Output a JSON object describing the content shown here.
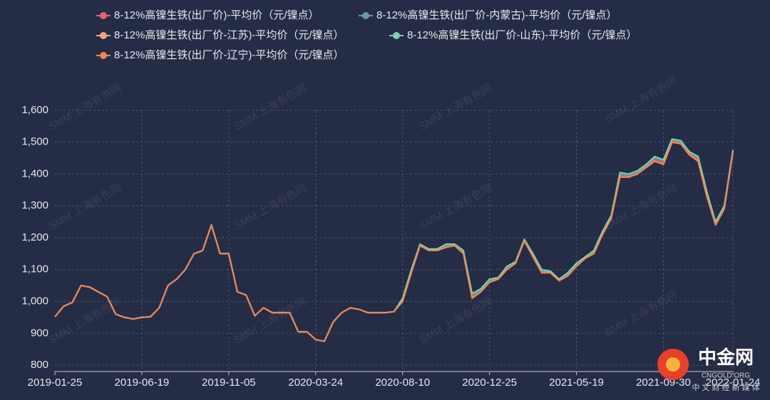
{
  "chart_data": {
    "type": "line",
    "watermark": "SMM 上海有色网",
    "logo": {
      "name": "中金网",
      "site": "CNGOLD.ORG",
      "slogan": "中 文 财 经 新 媒 体"
    },
    "categories": [
      "2019-01-25",
      null,
      null,
      null,
      null,
      null,
      null,
      null,
      null,
      null,
      "2019-06-19",
      null,
      null,
      null,
      null,
      null,
      null,
      null,
      null,
      null,
      "2019-11-05",
      null,
      null,
      null,
      null,
      null,
      null,
      null,
      null,
      null,
      "2020-03-24",
      null,
      null,
      null,
      null,
      null,
      null,
      null,
      null,
      null,
      "2020-08-10",
      null,
      null,
      null,
      null,
      null,
      null,
      null,
      null,
      null,
      "2020-12-25",
      null,
      null,
      null,
      null,
      null,
      null,
      null,
      null,
      null,
      "2021-05-19",
      null,
      null,
      null,
      null,
      null,
      null,
      null,
      null,
      null,
      "2021-09-30",
      null,
      null,
      null,
      null,
      null,
      null,
      null,
      "2022-01-24"
    ],
    "ylim": [
      780,
      1600
    ],
    "yticks": [
      800,
      900,
      {
        "value": 1000,
        "label": "1,000"
      },
      {
        "value": 1100,
        "label": "1,100"
      },
      {
        "value": 1200,
        "label": "1,200"
      },
      {
        "value": 1300,
        "label": "1,300"
      },
      {
        "value": 1400,
        "label": "1,400"
      },
      {
        "value": 1500,
        "label": "1,500"
      },
      {
        "value": 1600,
        "label": "1,600"
      }
    ],
    "grid": true,
    "series": [
      {
        "name": "8-12%高镍生铁(出厂价)-平均价（元/镍点）",
        "color": "#e0676b",
        "values": [
          952,
          985,
          997,
          1050,
          1045,
          1030,
          1015,
          960,
          950,
          945,
          950,
          952,
          980,
          1050,
          1070,
          1100,
          1150,
          1160,
          1240,
          1150,
          1150,
          1030,
          1020,
          955,
          980,
          965,
          965,
          965,
          905,
          905,
          880,
          875,
          935,
          965,
          980,
          975,
          965,
          965,
          965,
          968,
          1005,
          1095,
          1178,
          1160,
          1162,
          1172,
          1178,
          1152,
          1015,
          1032,
          1062,
          1072,
          1102,
          1122,
          1192,
          1142,
          1092,
          1092,
          1068,
          1082,
          1112,
          1137,
          1152,
          1212,
          1262,
          1395,
          1392,
          1402,
          1422,
          1445,
          1435,
          1505,
          1498,
          1465,
          1445,
          1335,
          1242,
          1292,
          1472
        ]
      },
      {
        "name": "8-12%高镍生铁(出厂价-内蒙古)-平均价（元/镍点）",
        "color": "#6c9a9c",
        "values": [
          952,
          985,
          997,
          1050,
          1045,
          1030,
          1015,
          960,
          950,
          945,
          950,
          952,
          980,
          1050,
          1070,
          1100,
          1150,
          1160,
          1240,
          1150,
          1150,
          1030,
          1020,
          955,
          980,
          965,
          965,
          965,
          905,
          905,
          880,
          875,
          935,
          965,
          980,
          975,
          965,
          965,
          965,
          968,
          1005,
          1095,
          1180,
          1160,
          1165,
          1175,
          1180,
          1155,
          1020,
          1035,
          1065,
          1075,
          1105,
          1125,
          1195,
          1145,
          1095,
          1095,
          1070,
          1085,
          1115,
          1140,
          1155,
          1215,
          1265,
          1400,
          1395,
          1405,
          1425,
          1450,
          1440,
          1510,
          1500,
          1470,
          1450,
          1340,
          1245,
          1295,
          1475
        ]
      },
      {
        "name": "8-12%高镍生铁(出厂价-江苏)-平均价（元/镍点）",
        "color": "#f2a384",
        "values": [
          952,
          985,
          997,
          1050,
          1045,
          1030,
          1015,
          960,
          950,
          945,
          950,
          952,
          980,
          1050,
          1070,
          1100,
          1150,
          1160,
          1240,
          1150,
          1150,
          1030,
          1020,
          955,
          980,
          965,
          965,
          965,
          905,
          905,
          880,
          875,
          935,
          965,
          980,
          975,
          965,
          965,
          965,
          968,
          1000,
          1090,
          1175,
          1160,
          1160,
          1170,
          1175,
          1150,
          1010,
          1030,
          1060,
          1070,
          1100,
          1120,
          1190,
          1140,
          1090,
          1090,
          1065,
          1080,
          1110,
          1135,
          1150,
          1210,
          1260,
          1390,
          1390,
          1400,
          1420,
          1440,
          1430,
          1500,
          1495,
          1460,
          1440,
          1330,
          1240,
          1290,
          1470
        ]
      },
      {
        "name": "8-12%高镍生铁(出厂价-山东)-平均价（元/镍点）",
        "color": "#7fd0b0",
        "values": [
          952,
          985,
          997,
          1050,
          1045,
          1030,
          1015,
          960,
          950,
          945,
          950,
          952,
          980,
          1050,
          1070,
          1100,
          1150,
          1160,
          1240,
          1150,
          1150,
          1030,
          1020,
          955,
          980,
          965,
          965,
          965,
          905,
          905,
          880,
          875,
          935,
          965,
          980,
          975,
          965,
          965,
          965,
          968,
          1010,
          1100,
          1180,
          1165,
          1165,
          1180,
          1180,
          1160,
          1025,
          1040,
          1070,
          1075,
          1110,
          1125,
          1195,
          1150,
          1100,
          1095,
          1070,
          1090,
          1120,
          1140,
          1160,
          1220,
          1270,
          1405,
          1400,
          1410,
          1430,
          1455,
          1445,
          1510,
          1505,
          1470,
          1455,
          1345,
          1250,
          1300,
          1475
        ]
      },
      {
        "name": "8-12%高镍生铁(出厂价-辽宁)-平均价（元/镍点）",
        "color": "#f08452",
        "values": [
          952,
          985,
          997,
          1050,
          1045,
          1030,
          1015,
          960,
          950,
          945,
          950,
          952,
          980,
          1050,
          1070,
          1100,
          1150,
          1160,
          1240,
          1150,
          1150,
          1030,
          1020,
          955,
          980,
          965,
          965,
          965,
          905,
          905,
          880,
          875,
          935,
          965,
          980,
          975,
          965,
          965,
          965,
          968,
          1000,
          1090,
          1175,
          1160,
          1160,
          1170,
          1175,
          1150,
          1010,
          1030,
          1060,
          1070,
          1100,
          1120,
          1190,
          1140,
          1090,
          1090,
          1065,
          1080,
          1110,
          1135,
          1150,
          1210,
          1260,
          1390,
          1390,
          1400,
          1420,
          1440,
          1430,
          1500,
          1495,
          1460,
          1440,
          1330,
          1240,
          1290,
          1470
        ]
      }
    ]
  }
}
